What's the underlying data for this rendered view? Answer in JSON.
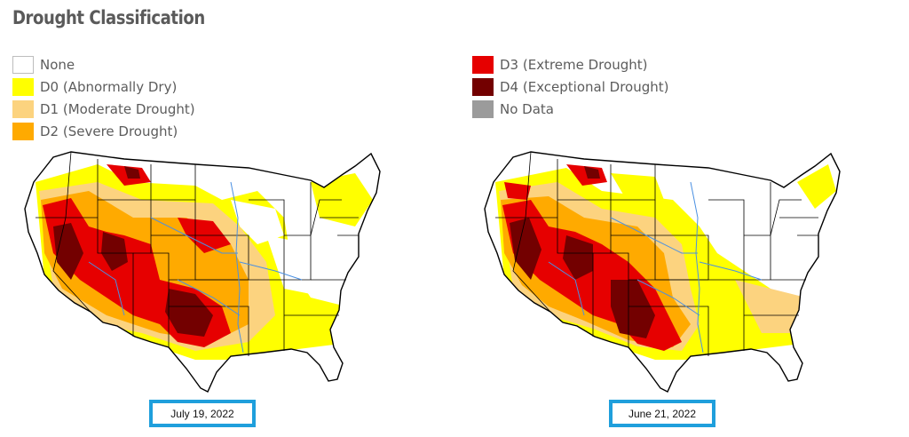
{
  "title": "Drought Classification",
  "legend": {
    "left": [
      {
        "label": "None",
        "color": "#ffffff"
      },
      {
        "label": "D0 (Abnormally Dry)",
        "color": "#ffff00"
      },
      {
        "label": "D1 (Moderate Drought)",
        "color": "#fcd37f"
      },
      {
        "label": "D2 (Severe Drought)",
        "color": "#ffaa00"
      }
    ],
    "right": [
      {
        "label": "D3 (Extreme Drought)",
        "color": "#e60000"
      },
      {
        "label": "D4 (Exceptional Drought)",
        "color": "#730000"
      },
      {
        "label": "No Data",
        "color": "#9b9b9b"
      }
    ]
  },
  "maps": [
    {
      "date": "July 19, 2022"
    },
    {
      "date": "June 21, 2022"
    }
  ],
  "colors": {
    "date_box_border": "#1f9fdc",
    "state_lines": "#000000",
    "rivers": "#4a90e2"
  }
}
